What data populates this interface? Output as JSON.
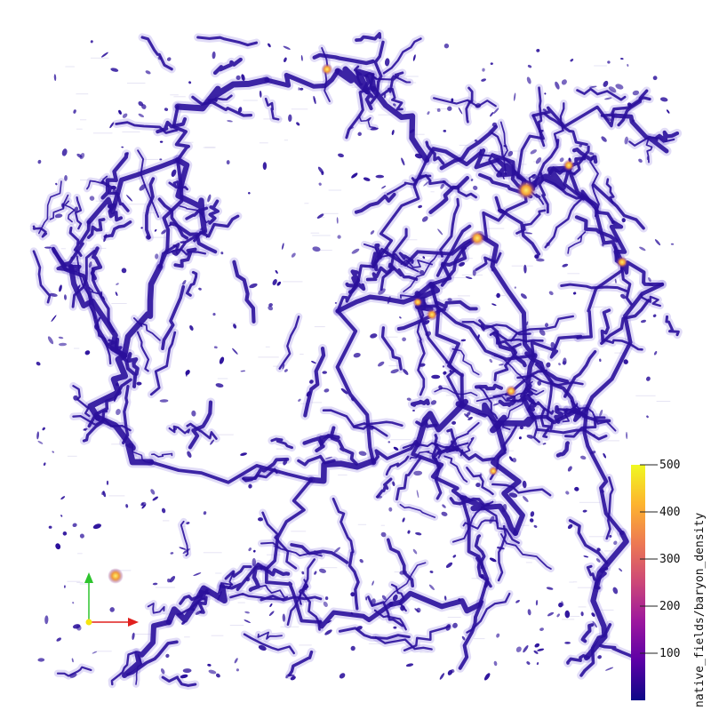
{
  "colorbar": {
    "title": "native_fields/baryon_density",
    "ticks": [
      100,
      200,
      300,
      400,
      500
    ],
    "min": 0,
    "max": 500,
    "stops": [
      "#0d0887",
      "#5c01a6",
      "#9c179e",
      "#cc4778",
      "#ed7953",
      "#fdb42f",
      "#f0f921"
    ]
  },
  "axes_triad": {
    "x_color": "#e0201e",
    "y_color": "#2ec42e",
    "origin_color": "#f5e50f"
  },
  "render": {
    "background": "#ffffff",
    "filament_color": "#2a0f9b",
    "filament_edge": "#5b3fd0",
    "hot_spot_color": "#f29c3a"
  }
}
